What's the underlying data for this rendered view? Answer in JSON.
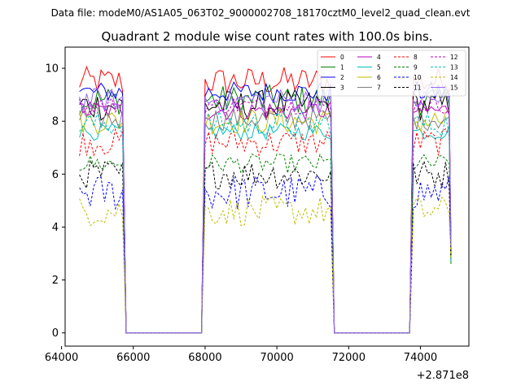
{
  "figure": {
    "suptitle": "Data file: modeM0/AS1A05_063T02_9000002708_18170cztM0_level2_quad_clean.evt",
    "offset_label": "+2.871e8"
  },
  "chart_data": {
    "type": "line",
    "title": "Quadrant 2 module wise count rates with 100.0s bins.",
    "xlabel": "",
    "ylabel": "",
    "xlim": [
      64100,
      75350
    ],
    "ylim": [
      -0.5,
      10.8
    ],
    "x_ticks": [
      64000,
      66000,
      68000,
      70000,
      72000,
      74000
    ],
    "x_tick_labels": [
      "64000",
      "66000",
      "68000",
      "70000",
      "72000",
      "74000"
    ],
    "y_ticks": [
      0,
      2,
      4,
      6,
      8,
      10
    ],
    "y_tick_labels": [
      "0",
      "2",
      "4",
      "6",
      "8",
      "10"
    ],
    "bin_width": 100,
    "segments": [
      {
        "start": 64500,
        "end": 65700
      },
      {
        "start": 68000,
        "end": 71500
      },
      {
        "start": 73800,
        "end": 74800
      }
    ],
    "gaps": [
      {
        "start": 65800,
        "end": 67900
      },
      {
        "start": 71600,
        "end": 73700
      }
    ],
    "end_x": 74850,
    "legend_position": "upper right",
    "series": [
      {
        "name": "0",
        "color": "#ff0000",
        "dashed": false,
        "level": 9.5
      },
      {
        "name": "1",
        "color": "#008000",
        "dashed": false,
        "level": 8.8
      },
      {
        "name": "2",
        "color": "#0000ff",
        "dashed": false,
        "level": 9.1
      },
      {
        "name": "3",
        "color": "#000000",
        "dashed": false,
        "level": 8.6
      },
      {
        "name": "4",
        "color": "#bf00bf",
        "dashed": false,
        "level": 8.4
      },
      {
        "name": "5",
        "color": "#00bfbf",
        "dashed": false,
        "level": 7.6
      },
      {
        "name": "6",
        "color": "#bfbf00",
        "dashed": false,
        "level": 8.0
      },
      {
        "name": "7",
        "color": "#808080",
        "dashed": false,
        "level": 8.1
      },
      {
        "name": "8",
        "color": "#ff0000",
        "dashed": true,
        "level": 7.2
      },
      {
        "name": "9",
        "color": "#008000",
        "dashed": true,
        "level": 6.4
      },
      {
        "name": "10",
        "color": "#0000ff",
        "dashed": true,
        "level": 5.3
      },
      {
        "name": "11",
        "color": "#000000",
        "dashed": true,
        "level": 6.0
      },
      {
        "name": "12",
        "color": "#bf00bf",
        "dashed": true,
        "level": 8.6
      },
      {
        "name": "13",
        "color": "#00bfbf",
        "dashed": true,
        "level": 7.9
      },
      {
        "name": "14",
        "color": "#bfbf00",
        "dashed": true,
        "level": 4.6
      },
      {
        "name": "15",
        "color": "#9966ff",
        "dashed": false,
        "level": 8.8
      }
    ],
    "noise_amplitude": 0.5
  }
}
